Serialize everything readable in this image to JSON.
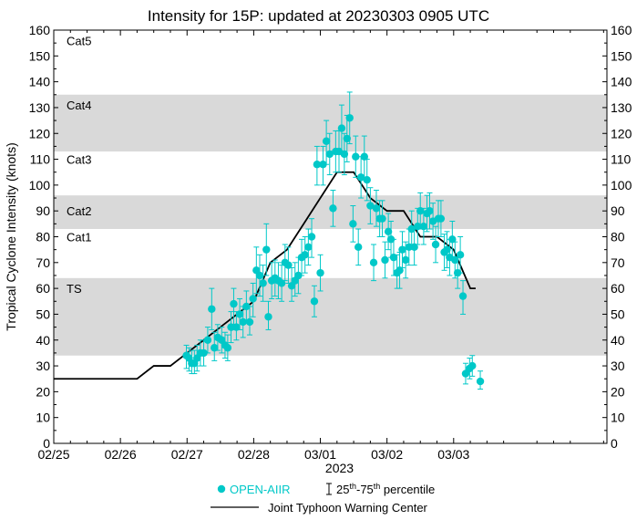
{
  "chart_data": {
    "type": "scatter",
    "title": "Intensity for 15P: updated at 20230303 0905 UTC",
    "ylabel": "Tropical Cyclone Intensity (knots)",
    "xlabel": "2023",
    "ylim": [
      0,
      160
    ],
    "xlim": [
      0,
      8.3
    ],
    "x_unit": "days since 02/25 00 UTC",
    "y_ticks": [
      0,
      10,
      20,
      30,
      40,
      50,
      60,
      70,
      80,
      90,
      100,
      110,
      120,
      130,
      140,
      150,
      160
    ],
    "x_ticks": [
      {
        "x": 0,
        "label": "02/25"
      },
      {
        "x": 1,
        "label": "02/26"
      },
      {
        "x": 2,
        "label": "02/27"
      },
      {
        "x": 3,
        "label": "02/28"
      },
      {
        "x": 4,
        "label": "03/01"
      },
      {
        "x": 5,
        "label": "03/02"
      },
      {
        "x": 6,
        "label": "03/03"
      }
    ],
    "category_bands": [
      {
        "label": "TS",
        "low": 34,
        "high": 64,
        "shaded": true
      },
      {
        "label": "Cat1",
        "low": 64,
        "high": 83,
        "shaded": false
      },
      {
        "label": "Cat2",
        "low": 83,
        "high": 96,
        "shaded": true
      },
      {
        "label": "Cat3",
        "low": 96,
        "high": 113,
        "shaded": false
      },
      {
        "label": "Cat4",
        "low": 113,
        "high": 135,
        "shaded": true
      },
      {
        "label": "Cat5",
        "low": 135,
        "high": 160,
        "shaded": false
      }
    ],
    "band_label_values": [
      {
        "label": "TS",
        "y": 60
      },
      {
        "label": "Cat1",
        "y": 80
      },
      {
        "label": "Cat2",
        "y": 90
      },
      {
        "label": "Cat3",
        "y": 110
      },
      {
        "label": "Cat4",
        "y": 131
      },
      {
        "label": "Cat5",
        "y": 156
      }
    ],
    "series": [
      {
        "name": "Joint Typhoon Warning Center",
        "kind": "line",
        "color": "#000000",
        "points": [
          [
            0,
            25
          ],
          [
            1.25,
            25
          ],
          [
            1.5,
            30
          ],
          [
            1.75,
            30
          ],
          [
            2.0,
            35
          ],
          [
            2.25,
            40
          ],
          [
            2.5,
            45
          ],
          [
            2.75,
            50
          ],
          [
            3.0,
            55
          ],
          [
            3.25,
            70
          ],
          [
            3.5,
            75
          ],
          [
            3.75,
            85
          ],
          [
            4.0,
            95
          ],
          [
            4.25,
            105
          ],
          [
            4.5,
            105
          ],
          [
            4.75,
            95
          ],
          [
            5.0,
            90
          ],
          [
            5.25,
            90
          ],
          [
            5.5,
            80
          ],
          [
            5.75,
            80
          ],
          [
            6.0,
            75
          ],
          [
            6.25,
            60
          ],
          [
            6.33,
            60
          ]
        ]
      },
      {
        "name": "OPEN-AIIR",
        "kind": "scatter",
        "color": "#00c8c8",
        "points": [
          {
            "x": 1.99,
            "y": 34,
            "lo": 29,
            "hi": 38
          },
          {
            "x": 2.03,
            "y": 33,
            "lo": 28,
            "hi": 37
          },
          {
            "x": 2.07,
            "y": 31,
            "lo": 27,
            "hi": 36
          },
          {
            "x": 2.11,
            "y": 31,
            "lo": 27,
            "hi": 36
          },
          {
            "x": 2.15,
            "y": 33,
            "lo": 28,
            "hi": 38
          },
          {
            "x": 2.2,
            "y": 35,
            "lo": 30,
            "hi": 40
          },
          {
            "x": 2.25,
            "y": 35,
            "lo": 30,
            "hi": 40
          },
          {
            "x": 2.31,
            "y": 40,
            "lo": 35,
            "hi": 45
          },
          {
            "x": 2.37,
            "y": 52,
            "lo": 44,
            "hi": 60
          },
          {
            "x": 2.41,
            "y": 37,
            "lo": 32,
            "hi": 43
          },
          {
            "x": 2.46,
            "y": 41,
            "lo": 36,
            "hi": 46
          },
          {
            "x": 2.52,
            "y": 40,
            "lo": 35,
            "hi": 45
          },
          {
            "x": 2.57,
            "y": 38,
            "lo": 33,
            "hi": 43
          },
          {
            "x": 2.61,
            "y": 37,
            "lo": 32,
            "hi": 42
          },
          {
            "x": 2.66,
            "y": 45,
            "lo": 39,
            "hi": 51
          },
          {
            "x": 2.7,
            "y": 54,
            "lo": 46,
            "hi": 60
          },
          {
            "x": 2.74,
            "y": 45,
            "lo": 40,
            "hi": 51
          },
          {
            "x": 2.79,
            "y": 50,
            "lo": 44,
            "hi": 56
          },
          {
            "x": 2.84,
            "y": 47,
            "lo": 41,
            "hi": 53
          },
          {
            "x": 2.89,
            "y": 53,
            "lo": 47,
            "hi": 59
          },
          {
            "x": 2.94,
            "y": 47,
            "lo": 42,
            "hi": 53
          },
          {
            "x": 2.99,
            "y": 56,
            "lo": 49,
            "hi": 62
          },
          {
            "x": 3.04,
            "y": 67,
            "lo": 58,
            "hi": 76
          },
          {
            "x": 3.09,
            "y": 65,
            "lo": 57,
            "hi": 73
          },
          {
            "x": 3.14,
            "y": 62,
            "lo": 55,
            "hi": 69
          },
          {
            "x": 3.19,
            "y": 75,
            "lo": 65,
            "hi": 85
          },
          {
            "x": 3.22,
            "y": 49,
            "lo": 44,
            "hi": 55
          },
          {
            "x": 3.27,
            "y": 63,
            "lo": 56,
            "hi": 70
          },
          {
            "x": 3.32,
            "y": 64,
            "lo": 57,
            "hi": 71
          },
          {
            "x": 3.37,
            "y": 63,
            "lo": 56,
            "hi": 70
          },
          {
            "x": 3.42,
            "y": 62,
            "lo": 55,
            "hi": 69
          },
          {
            "x": 3.47,
            "y": 70,
            "lo": 63,
            "hi": 77
          },
          {
            "x": 3.52,
            "y": 69,
            "lo": 62,
            "hi": 76
          },
          {
            "x": 3.57,
            "y": 61,
            "lo": 55,
            "hi": 68
          },
          {
            "x": 3.62,
            "y": 63,
            "lo": 57,
            "hi": 70
          },
          {
            "x": 3.67,
            "y": 65,
            "lo": 58,
            "hi": 72
          },
          {
            "x": 3.72,
            "y": 72,
            "lo": 65,
            "hi": 79
          },
          {
            "x": 3.77,
            "y": 73,
            "lo": 66,
            "hi": 80
          },
          {
            "x": 3.82,
            "y": 76,
            "lo": 69,
            "hi": 83
          },
          {
            "x": 3.87,
            "y": 80,
            "lo": 72,
            "hi": 87
          },
          {
            "x": 3.91,
            "y": 55,
            "lo": 49,
            "hi": 61
          },
          {
            "x": 3.95,
            "y": 108,
            "lo": 100,
            "hi": 115
          },
          {
            "x": 4.0,
            "y": 66,
            "lo": 59,
            "hi": 73
          },
          {
            "x": 4.04,
            "y": 108,
            "lo": 100,
            "hi": 115
          },
          {
            "x": 4.09,
            "y": 117,
            "lo": 108,
            "hi": 125
          },
          {
            "x": 4.14,
            "y": 112,
            "lo": 104,
            "hi": 120
          },
          {
            "x": 4.19,
            "y": 91,
            "lo": 84,
            "hi": 98
          },
          {
            "x": 4.23,
            "y": 113,
            "lo": 105,
            "hi": 121
          },
          {
            "x": 4.28,
            "y": 113,
            "lo": 105,
            "hi": 121
          },
          {
            "x": 4.32,
            "y": 122,
            "lo": 113,
            "hi": 131
          },
          {
            "x": 4.36,
            "y": 112,
            "lo": 104,
            "hi": 120
          },
          {
            "x": 4.4,
            "y": 118,
            "lo": 109,
            "hi": 127
          },
          {
            "x": 4.44,
            "y": 126,
            "lo": 116,
            "hi": 136
          },
          {
            "x": 4.49,
            "y": 85,
            "lo": 78,
            "hi": 92
          },
          {
            "x": 4.53,
            "y": 111,
            "lo": 103,
            "hi": 119
          },
          {
            "x": 4.57,
            "y": 76,
            "lo": 69,
            "hi": 83
          },
          {
            "x": 4.61,
            "y": 103,
            "lo": 95,
            "hi": 111
          },
          {
            "x": 4.66,
            "y": 111,
            "lo": 103,
            "hi": 119
          },
          {
            "x": 4.7,
            "y": 102,
            "lo": 94,
            "hi": 110
          },
          {
            "x": 4.75,
            "y": 92,
            "lo": 85,
            "hi": 99
          },
          {
            "x": 4.8,
            "y": 70,
            "lo": 63,
            "hi": 77
          },
          {
            "x": 4.84,
            "y": 91,
            "lo": 84,
            "hi": 98
          },
          {
            "x": 4.89,
            "y": 87,
            "lo": 80,
            "hi": 94
          },
          {
            "x": 4.93,
            "y": 87,
            "lo": 80,
            "hi": 94
          },
          {
            "x": 4.97,
            "y": 71,
            "lo": 64,
            "hi": 78
          },
          {
            "x": 5.02,
            "y": 82,
            "lo": 75,
            "hi": 89
          },
          {
            "x": 5.06,
            "y": 79,
            "lo": 72,
            "hi": 86
          },
          {
            "x": 5.1,
            "y": 72,
            "lo": 65,
            "hi": 79
          },
          {
            "x": 5.15,
            "y": 66,
            "lo": 60,
            "hi": 73
          },
          {
            "x": 5.19,
            "y": 67,
            "lo": 60,
            "hi": 74
          },
          {
            "x": 5.23,
            "y": 75,
            "lo": 68,
            "hi": 82
          },
          {
            "x": 5.28,
            "y": 71,
            "lo": 64,
            "hi": 78
          },
          {
            "x": 5.33,
            "y": 76,
            "lo": 69,
            "hi": 83
          },
          {
            "x": 5.37,
            "y": 83,
            "lo": 76,
            "hi": 90
          },
          {
            "x": 5.41,
            "y": 76,
            "lo": 69,
            "hi": 83
          },
          {
            "x": 5.46,
            "y": 84,
            "lo": 77,
            "hi": 91
          },
          {
            "x": 5.5,
            "y": 90,
            "lo": 83,
            "hi": 97
          },
          {
            "x": 5.55,
            "y": 84,
            "lo": 77,
            "hi": 91
          },
          {
            "x": 5.6,
            "y": 89,
            "lo": 82,
            "hi": 96
          },
          {
            "x": 5.64,
            "y": 90,
            "lo": 83,
            "hi": 97
          },
          {
            "x": 5.69,
            "y": 86,
            "lo": 79,
            "hi": 93
          },
          {
            "x": 5.73,
            "y": 77,
            "lo": 70,
            "hi": 84
          },
          {
            "x": 5.77,
            "y": 87,
            "lo": 80,
            "hi": 94
          },
          {
            "x": 5.81,
            "y": 87,
            "lo": 80,
            "hi": 94
          },
          {
            "x": 5.86,
            "y": 74,
            "lo": 67,
            "hi": 81
          },
          {
            "x": 5.9,
            "y": 75,
            "lo": 68,
            "hi": 82
          },
          {
            "x": 5.94,
            "y": 72,
            "lo": 65,
            "hi": 79
          },
          {
            "x": 5.98,
            "y": 79,
            "lo": 72,
            "hi": 86
          },
          {
            "x": 6.02,
            "y": 71,
            "lo": 64,
            "hi": 78
          },
          {
            "x": 6.06,
            "y": 66,
            "lo": 60,
            "hi": 72
          },
          {
            "x": 6.1,
            "y": 73,
            "lo": 66,
            "hi": 80
          },
          {
            "x": 6.14,
            "y": 57,
            "lo": 50,
            "hi": 63
          },
          {
            "x": 6.18,
            "y": 27,
            "lo": 23,
            "hi": 31
          },
          {
            "x": 6.24,
            "y": 29,
            "lo": 25,
            "hi": 33
          },
          {
            "x": 6.28,
            "y": 30,
            "lo": 26,
            "hi": 34
          },
          {
            "x": 6.4,
            "y": 24,
            "lo": 21,
            "hi": 28
          }
        ]
      }
    ],
    "legend": {
      "scatter_label": "OPEN-AIIR",
      "percentile_label": "25th-75th percentile",
      "percentile_base": "25",
      "percentile_mid": "-75",
      "percentile_tail": " percentile",
      "percentile_sup": "th",
      "line_label": "Joint Typhoon Warning Center"
    }
  }
}
